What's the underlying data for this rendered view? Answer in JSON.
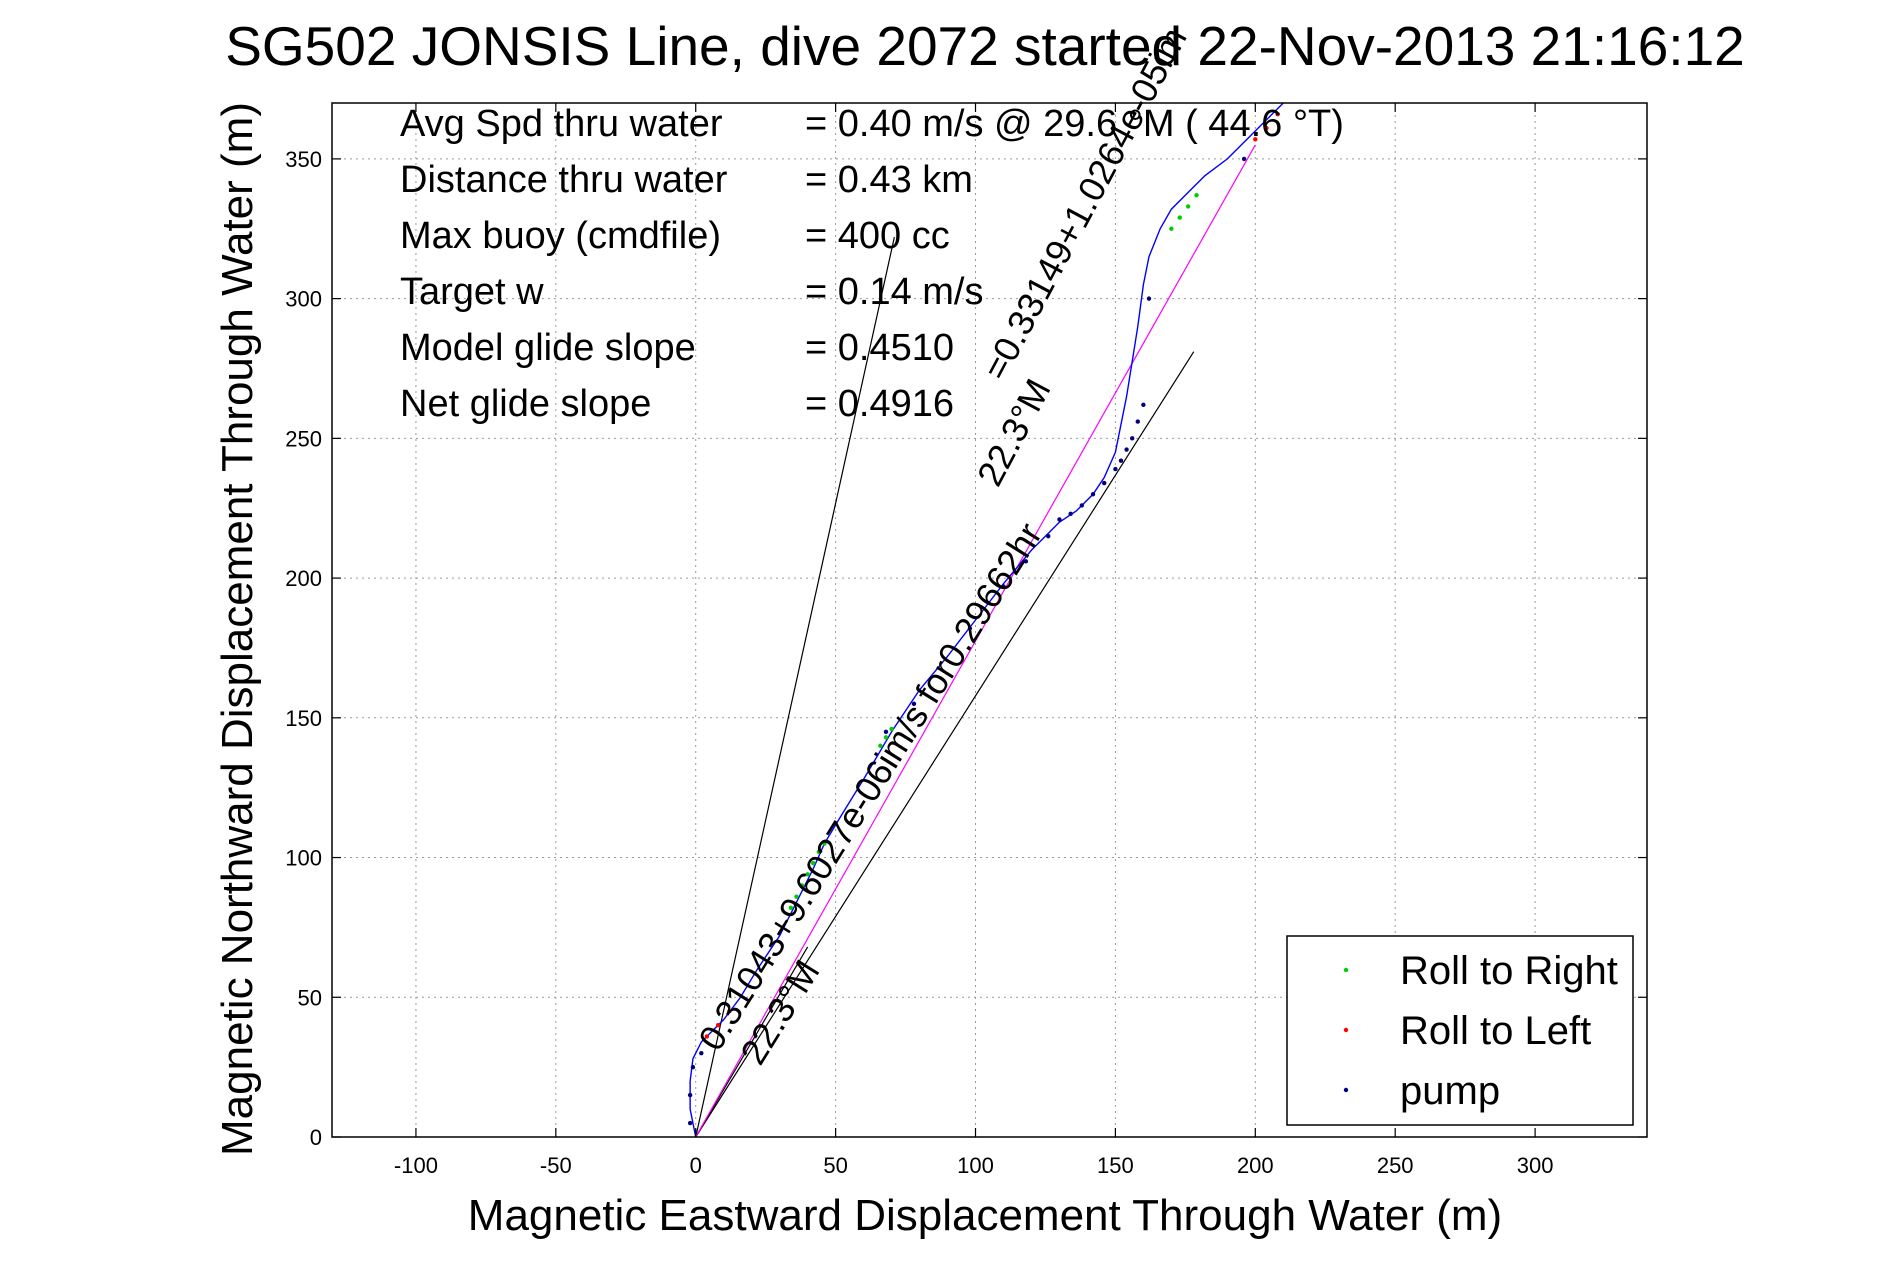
{
  "chart_data": {
    "type": "line",
    "title": "SG502 JONSIS Line, dive 2072 started 22-Nov-2013 21:16:12",
    "xlabel": "Magnetic Eastward Displacement Through Water (m)",
    "ylabel": "Magnetic Northward Displacement Through Water (m)",
    "xlim": [
      -130,
      340
    ],
    "ylim": [
      0,
      370
    ],
    "xticks": [
      -100,
      -50,
      0,
      50,
      100,
      150,
      200,
      250,
      300
    ],
    "yticks": [
      0,
      50,
      100,
      150,
      200,
      250,
      300,
      350
    ],
    "grid": true,
    "legend_position": "bottom-right",
    "stats": [
      {
        "label": "Avg Spd thru water",
        "value": "=  0.40 m/s @  29.6 °M ( 44.6 °T)"
      },
      {
        "label": "Distance thru water",
        "value": "=  0.43 km"
      },
      {
        "label": "Max buoy (cmdfile)",
        "value": "= 400 cc"
      },
      {
        "label": "Target w",
        "value": "= 0.14 m/s"
      },
      {
        "label": "Model glide slope",
        "value": "= 0.4510"
      },
      {
        "label": "Net glide slope",
        "value": "= 0.4916"
      }
    ],
    "annotations": [
      {
        "text": "0.31043+9.6027e-06im/s for0.29662hr",
        "x": 8,
        "y": 30,
        "angle_deg": -58
      },
      {
        "text": "22.3°M",
        "x": 23,
        "y": 25,
        "angle_deg": -58
      },
      {
        "text": "=0.33149+1.0264e-05im",
        "x": 110,
        "y": 270,
        "angle_deg": -62
      },
      {
        "text": "22.3°M",
        "x": 108,
        "y": 232,
        "angle_deg": -62
      }
    ],
    "series": [
      {
        "name": "track",
        "color": "#0000ff",
        "x": [
          0,
          -2,
          -2,
          -1,
          2,
          6,
          10,
          16,
          22,
          30,
          36,
          42,
          46,
          52,
          60,
          70,
          80,
          90,
          100,
          110,
          120,
          130,
          136,
          142,
          146,
          150,
          154,
          158,
          160,
          162,
          164,
          166,
          170,
          176,
          182,
          190,
          200,
          210
        ],
        "y": [
          0,
          10,
          20,
          28,
          34,
          38,
          42,
          50,
          60,
          72,
          84,
          96,
          105,
          115,
          128,
          145,
          160,
          172,
          185,
          198,
          210,
          220,
          224,
          230,
          236,
          245,
          265,
          290,
          305,
          315,
          320,
          325,
          332,
          338,
          344,
          350,
          360,
          370
        ]
      },
      {
        "name": "Roll to Right",
        "color": "#00cc00",
        "x": [
          34,
          36,
          38,
          40,
          42,
          44,
          46,
          66,
          68,
          70,
          170,
          173,
          176,
          179
        ],
        "y": [
          82,
          86,
          90,
          94,
          98,
          102,
          105,
          140,
          143,
          146,
          325,
          329,
          333,
          337
        ]
      },
      {
        "name": "Roll to Left",
        "color": "#ff0000",
        "x": [
          4,
          8,
          12,
          200,
          204,
          208
        ],
        "y": [
          36,
          40,
          45,
          357,
          361,
          366
        ]
      },
      {
        "name": "pump",
        "color": "#000080",
        "x": [
          -2,
          -2,
          -1,
          2,
          68,
          78,
          98,
          110,
          118,
          126,
          130,
          134,
          138,
          142,
          146,
          150,
          152,
          154,
          156,
          158,
          160,
          162,
          196
        ],
        "y": [
          5,
          15,
          25,
          30,
          145,
          155,
          182,
          197,
          206,
          215,
          221,
          223,
          226,
          230,
          234,
          239,
          242,
          246,
          250,
          256,
          262,
          300,
          350
        ]
      },
      {
        "name": "net-course-line",
        "color": "#000000",
        "x": [
          0,
          71
        ],
        "y": [
          0,
          322
        ]
      },
      {
        "name": "current-line-1",
        "color": "#000000",
        "x": [
          0,
          40
        ],
        "y": [
          0,
          68
        ]
      },
      {
        "name": "current-line-2",
        "color": "#000000",
        "x": [
          0,
          178
        ],
        "y": [
          0,
          281
        ]
      },
      {
        "name": "model-slope-line",
        "color": "#ff00ff",
        "x": [
          0,
          200
        ],
        "y": [
          0,
          355
        ]
      }
    ]
  },
  "legend": [
    {
      "name": "Roll to Right",
      "color": "#00cc00"
    },
    {
      "name": "Roll to Left",
      "color": "#ff0000"
    },
    {
      "name": "pump",
      "color": "#000080"
    }
  ]
}
